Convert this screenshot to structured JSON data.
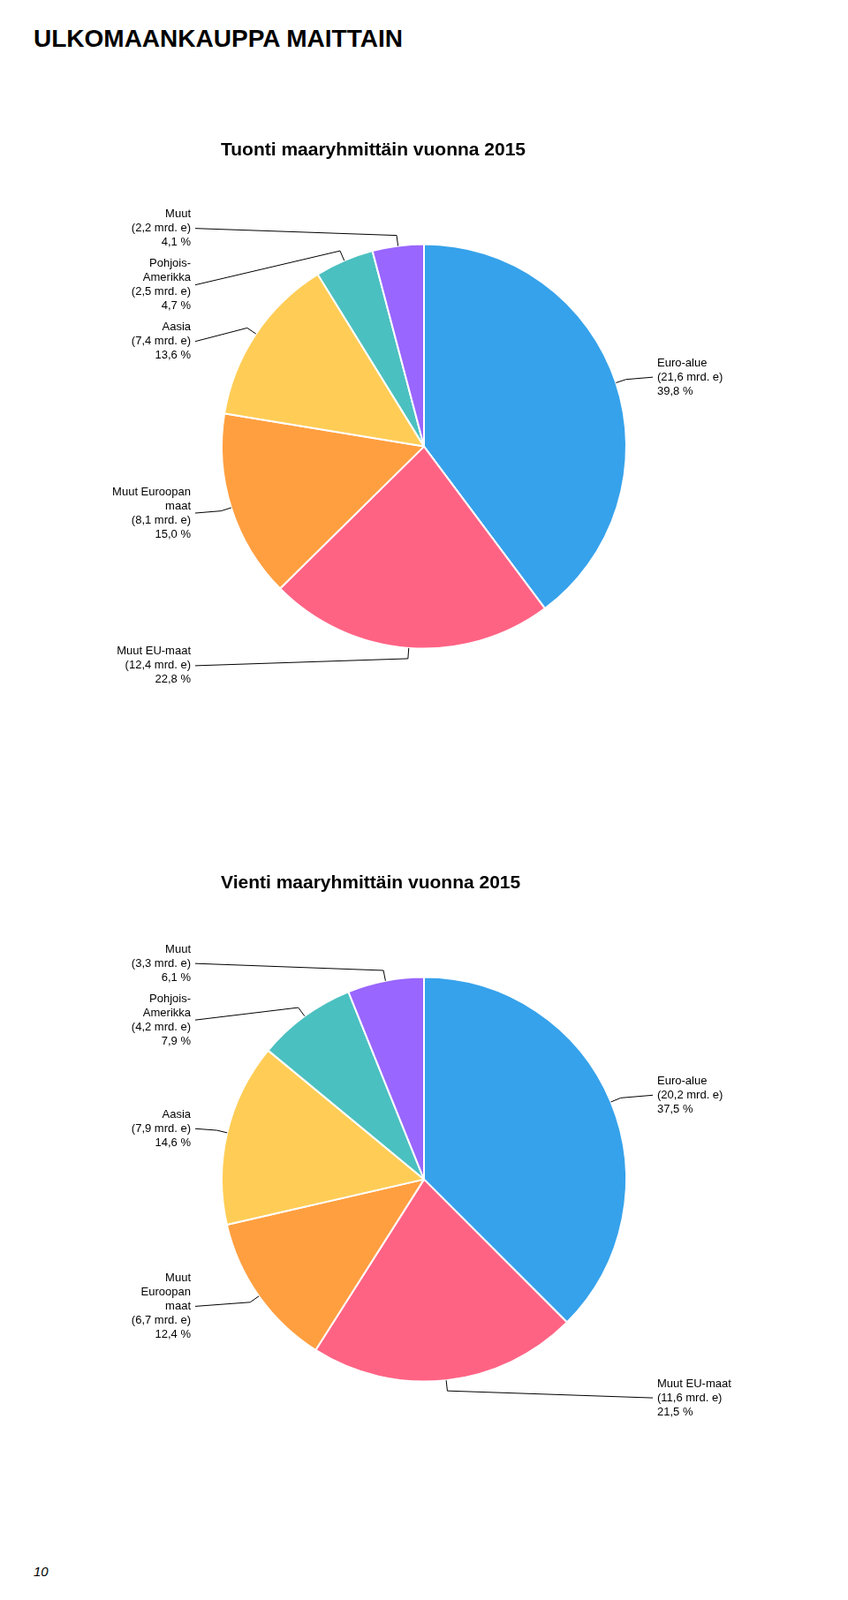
{
  "title": "ULKOMAANKAUPPA MAITTAIN",
  "annotations": [
    "10"
  ],
  "chart_data": [
    {
      "type": "pie",
      "title": "Tuonti maaryhmittäin vuonna 2015",
      "categories": [
        "Euro-alue\n(21,6 mrd. e)",
        "Muut EU-maat\n(12,4 mrd. e)",
        "Muut Euroopan\nmaat\n(8,1 mrd. e)",
        "Aasia\n(7,4 mrd. e)",
        "Pohjois-\nAmerikka\n(2,5 mrd. e)",
        "Muut\n(2,2 mrd. e)"
      ],
      "values": [
        39.8,
        22.8,
        15.0,
        13.6,
        4.7,
        4.1
      ],
      "value_labels": [
        "39,8 %",
        "22,8 %",
        "15,0 %",
        "13,6 %",
        "4,7 %",
        "4,1 %"
      ],
      "data_labels": true
    },
    {
      "type": "pie",
      "title": "Vienti maaryhmittäin vuonna 2015",
      "categories": [
        "Euro-alue\n(20,2 mrd. e)",
        "Muut EU-maat\n(11,6 mrd. e)",
        "Muut\nEuroopan\nmaat\n(6,7 mrd. e)",
        "Aasia\n(7,9 mrd. e)",
        "Pohjois-\nAmerikka\n(4,2 mrd. e)",
        "Muut\n(3,3 mrd. e)"
      ],
      "values": [
        37.5,
        21.5,
        12.4,
        14.6,
        7.9,
        6.1
      ],
      "value_labels": [
        "37,5 %",
        "21,5 %",
        "12,4 %",
        "14,6 %",
        "7,9 %",
        "6,1 %"
      ],
      "data_labels": true
    }
  ]
}
